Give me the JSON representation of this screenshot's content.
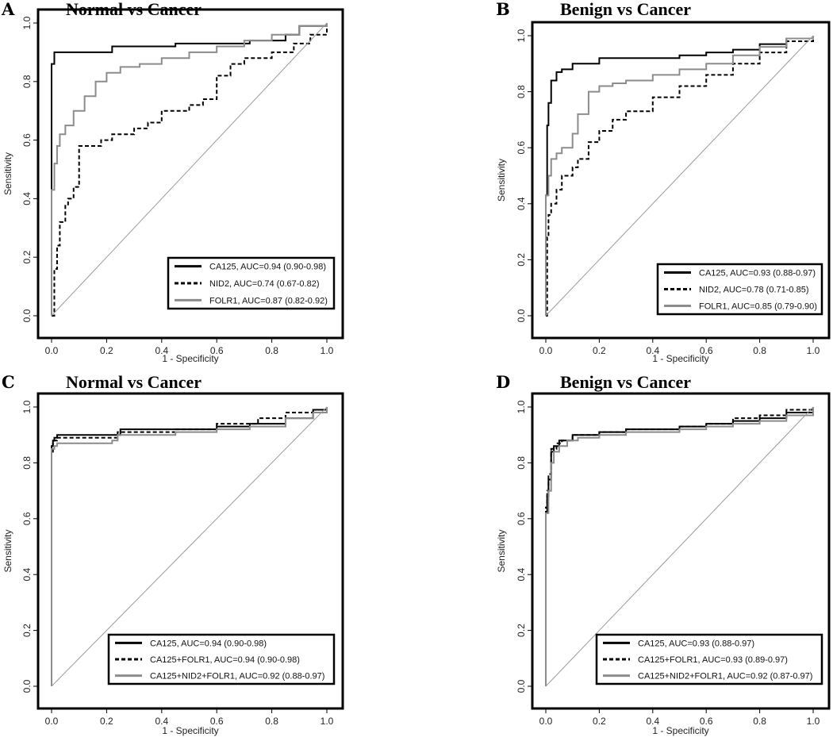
{
  "chart_data": [
    {
      "type": "line",
      "panel": "A",
      "title": "Normal vs Cancer",
      "xlabel": "1 - Specificity",
      "ylabel": "Sensitivity",
      "xlim": [
        0,
        1
      ],
      "ylim": [
        0,
        1
      ],
      "xticks": [
        "0.0",
        "0.2",
        "0.4",
        "0.6",
        "0.8",
        "1.0"
      ],
      "yticks": [
        "0.0",
        "0.2",
        "0.4",
        "0.6",
        "0.8",
        "1.0"
      ],
      "legend_position": "bottom-right",
      "series": [
        {
          "name": "CA125, AUC=0.94 (0.90-0.98)",
          "style": "solid",
          "color": "#000000",
          "x": [
            0,
            0,
            0.01,
            0.01,
            0.04,
            0.04,
            0.2,
            0.22,
            0.42,
            0.45,
            0.6,
            0.72,
            0.85,
            0.9,
            1.0
          ],
          "y": [
            0,
            0.86,
            0.88,
            0.9,
            0.9,
            0.9,
            0.9,
            0.92,
            0.92,
            0.93,
            0.93,
            0.94,
            0.96,
            0.99,
            1.0
          ]
        },
        {
          "name": "NID2, AUC=0.74 (0.67-0.82)",
          "style": "dashed",
          "color": "#000000",
          "x": [
            0,
            0.01,
            0.02,
            0.03,
            0.05,
            0.06,
            0.08,
            0.1,
            0.1,
            0.18,
            0.22,
            0.3,
            0.35,
            0.4,
            0.5,
            0.55,
            0.6,
            0.65,
            0.7,
            0.8,
            0.88,
            0.94,
            1.0
          ],
          "y": [
            0,
            0.16,
            0.24,
            0.32,
            0.38,
            0.4,
            0.44,
            0.5,
            0.58,
            0.6,
            0.62,
            0.64,
            0.66,
            0.7,
            0.72,
            0.74,
            0.82,
            0.86,
            0.88,
            0.9,
            0.93,
            0.96,
            1.0
          ]
        },
        {
          "name": "FOLR1, AUC=0.87 (0.82-0.92)",
          "style": "solid",
          "color": "#8c8c8c",
          "x": [
            0,
            0,
            0.01,
            0.02,
            0.03,
            0.05,
            0.08,
            0.12,
            0.16,
            0.2,
            0.25,
            0.32,
            0.4,
            0.5,
            0.6,
            0.7,
            0.8,
            0.9,
            1.0
          ],
          "y": [
            0,
            0.43,
            0.52,
            0.58,
            0.62,
            0.65,
            0.7,
            0.75,
            0.8,
            0.83,
            0.85,
            0.86,
            0.88,
            0.9,
            0.92,
            0.94,
            0.96,
            0.99,
            1.0
          ]
        },
        {
          "name": "",
          "style": "diagonal",
          "color": "#9a9a9a",
          "x": [
            0,
            1
          ],
          "y": [
            0,
            1
          ]
        }
      ]
    },
    {
      "type": "line",
      "panel": "B",
      "title": "Benign vs Cancer",
      "xlabel": "1 - Specificity",
      "ylabel": "Sensitivity",
      "xlim": [
        0,
        1
      ],
      "ylim": [
        0,
        1
      ],
      "xticks": [
        "0.0",
        "0.2",
        "0.4",
        "0.6",
        "0.8",
        "1.0"
      ],
      "yticks": [
        "0.0",
        "0.2",
        "0.4",
        "0.6",
        "0.8",
        "1.0"
      ],
      "legend_position": "bottom-right",
      "series": [
        {
          "name": "CA125, AUC=0.93 (0.88-0.97)",
          "style": "solid",
          "color": "#000000",
          "x": [
            0,
            0,
            0.005,
            0.01,
            0.02,
            0.04,
            0.06,
            0.1,
            0.2,
            0.3,
            0.5,
            0.6,
            0.7,
            0.8,
            0.9,
            1.0
          ],
          "y": [
            0,
            0.43,
            0.68,
            0.76,
            0.84,
            0.87,
            0.88,
            0.9,
            0.92,
            0.92,
            0.93,
            0.94,
            0.95,
            0.97,
            0.99,
            1.0
          ]
        },
        {
          "name": "NID2, AUC=0.78 (0.71-0.85)",
          "style": "dashed",
          "color": "#000000",
          "x": [
            0,
            0.005,
            0.01,
            0.02,
            0.04,
            0.06,
            0.1,
            0.12,
            0.16,
            0.2,
            0.25,
            0.3,
            0.4,
            0.5,
            0.6,
            0.7,
            0.8,
            0.9,
            1.0
          ],
          "y": [
            0,
            0.28,
            0.36,
            0.4,
            0.45,
            0.5,
            0.53,
            0.56,
            0.62,
            0.66,
            0.7,
            0.73,
            0.78,
            0.82,
            0.86,
            0.9,
            0.94,
            0.98,
            1.0
          ]
        },
        {
          "name": "FOLR1, AUC=0.85 (0.79-0.90)",
          "style": "solid",
          "color": "#8c8c8c",
          "x": [
            0,
            0,
            0.01,
            0.02,
            0.04,
            0.06,
            0.1,
            0.12,
            0.16,
            0.2,
            0.25,
            0.3,
            0.4,
            0.5,
            0.6,
            0.7,
            0.8,
            0.9,
            1.0
          ],
          "y": [
            0,
            0.43,
            0.5,
            0.56,
            0.58,
            0.6,
            0.65,
            0.72,
            0.8,
            0.82,
            0.83,
            0.84,
            0.86,
            0.88,
            0.9,
            0.93,
            0.96,
            0.99,
            1.0
          ]
        },
        {
          "name": "",
          "style": "diagonal",
          "color": "#9a9a9a",
          "x": [
            0,
            1
          ],
          "y": [
            0,
            1
          ]
        }
      ]
    },
    {
      "type": "line",
      "panel": "C",
      "title": "Normal vs Cancer",
      "xlabel": "1 - Specificity",
      "ylabel": "Sensitivity",
      "xlim": [
        0,
        1
      ],
      "ylim": [
        0,
        1
      ],
      "xticks": [
        "0.0",
        "0.2",
        "0.4",
        "0.6",
        "0.8",
        "1.0"
      ],
      "yticks": [
        "0.0",
        "0.2",
        "0.4",
        "0.6",
        "0.8",
        "1.0"
      ],
      "legend_position": "bottom-right",
      "series": [
        {
          "name": "CA125, AUC=0.94 (0.90-0.98)",
          "style": "solid",
          "color": "#000000",
          "x": [
            0,
            0,
            0.005,
            0.01,
            0.02,
            0.2,
            0.25,
            0.45,
            0.6,
            0.72,
            0.85,
            0.95,
            1.0
          ],
          "y": [
            0,
            0.86,
            0.88,
            0.89,
            0.9,
            0.9,
            0.92,
            0.92,
            0.93,
            0.94,
            0.96,
            0.99,
            1.0
          ]
        },
        {
          "name": "CA125+FOLR1, AUC=0.94 (0.90-0.98)",
          "style": "dashed",
          "color": "#000000",
          "x": [
            0,
            0,
            0.005,
            0.01,
            0.02,
            0.22,
            0.24,
            0.45,
            0.6,
            0.75,
            0.85,
            0.95,
            1.0
          ],
          "y": [
            0,
            0.84,
            0.87,
            0.88,
            0.89,
            0.89,
            0.91,
            0.92,
            0.94,
            0.96,
            0.98,
            0.99,
            1.0
          ]
        },
        {
          "name": "CA125+NID2+FOLR1, AUC=0.92 (0.88-0.97)",
          "style": "solid",
          "color": "#8c8c8c",
          "x": [
            0,
            0,
            0.01,
            0.02,
            0.22,
            0.24,
            0.45,
            0.6,
            0.72,
            0.85,
            0.95,
            1.0
          ],
          "y": [
            0,
            0.85,
            0.86,
            0.87,
            0.88,
            0.9,
            0.91,
            0.92,
            0.93,
            0.96,
            0.98,
            1.0
          ]
        },
        {
          "name": "",
          "style": "diagonal",
          "color": "#9a9a9a",
          "x": [
            0,
            1
          ],
          "y": [
            0,
            1
          ]
        }
      ]
    },
    {
      "type": "line",
      "panel": "D",
      "title": "Benign vs Cancer",
      "xlabel": "1 - Specificity",
      "ylabel": "Sensitivity",
      "xlim": [
        0,
        1
      ],
      "ylim": [
        0,
        1
      ],
      "xticks": [
        "0.0",
        "0.2",
        "0.4",
        "0.6",
        "0.8",
        "1.0"
      ],
      "yticks": [
        "0.0",
        "0.2",
        "0.4",
        "0.6",
        "0.8",
        "1.0"
      ],
      "legend_position": "bottom-right",
      "series": [
        {
          "name": "CA125, AUC=0.93 (0.88-0.97)",
          "style": "solid",
          "color": "#000000",
          "x": [
            0,
            0,
            0.005,
            0.01,
            0.02,
            0.03,
            0.05,
            0.1,
            0.2,
            0.3,
            0.5,
            0.6,
            0.7,
            0.8,
            0.9,
            1.0
          ],
          "y": [
            0,
            0.62,
            0.68,
            0.74,
            0.84,
            0.86,
            0.88,
            0.9,
            0.91,
            0.92,
            0.93,
            0.94,
            0.95,
            0.96,
            0.98,
            1.0
          ]
        },
        {
          "name": "CA125+FOLR1, AUC=0.93 (0.89-0.97)",
          "style": "dashed",
          "color": "#000000",
          "x": [
            0,
            0,
            0.005,
            0.01,
            0.02,
            0.04,
            0.06,
            0.1,
            0.2,
            0.3,
            0.5,
            0.6,
            0.7,
            0.8,
            0.9,
            1.0
          ],
          "y": [
            0,
            0.64,
            0.7,
            0.76,
            0.85,
            0.87,
            0.88,
            0.9,
            0.91,
            0.92,
            0.93,
            0.94,
            0.96,
            0.97,
            0.99,
            1.0
          ]
        },
        {
          "name": "CA125+NID2+FOLR1, AUC=0.92 (0.87-0.97)",
          "style": "solid",
          "color": "#8c8c8c",
          "x": [
            0,
            0,
            0.01,
            0.02,
            0.03,
            0.05,
            0.08,
            0.12,
            0.2,
            0.3,
            0.5,
            0.6,
            0.7,
            0.8,
            0.9,
            1.0
          ],
          "y": [
            0,
            0.62,
            0.7,
            0.8,
            0.84,
            0.86,
            0.88,
            0.89,
            0.9,
            0.91,
            0.92,
            0.93,
            0.94,
            0.95,
            0.97,
            1.0
          ]
        },
        {
          "name": "",
          "style": "diagonal",
          "color": "#9a9a9a",
          "x": [
            0,
            1
          ],
          "y": [
            0,
            1
          ]
        }
      ]
    }
  ]
}
